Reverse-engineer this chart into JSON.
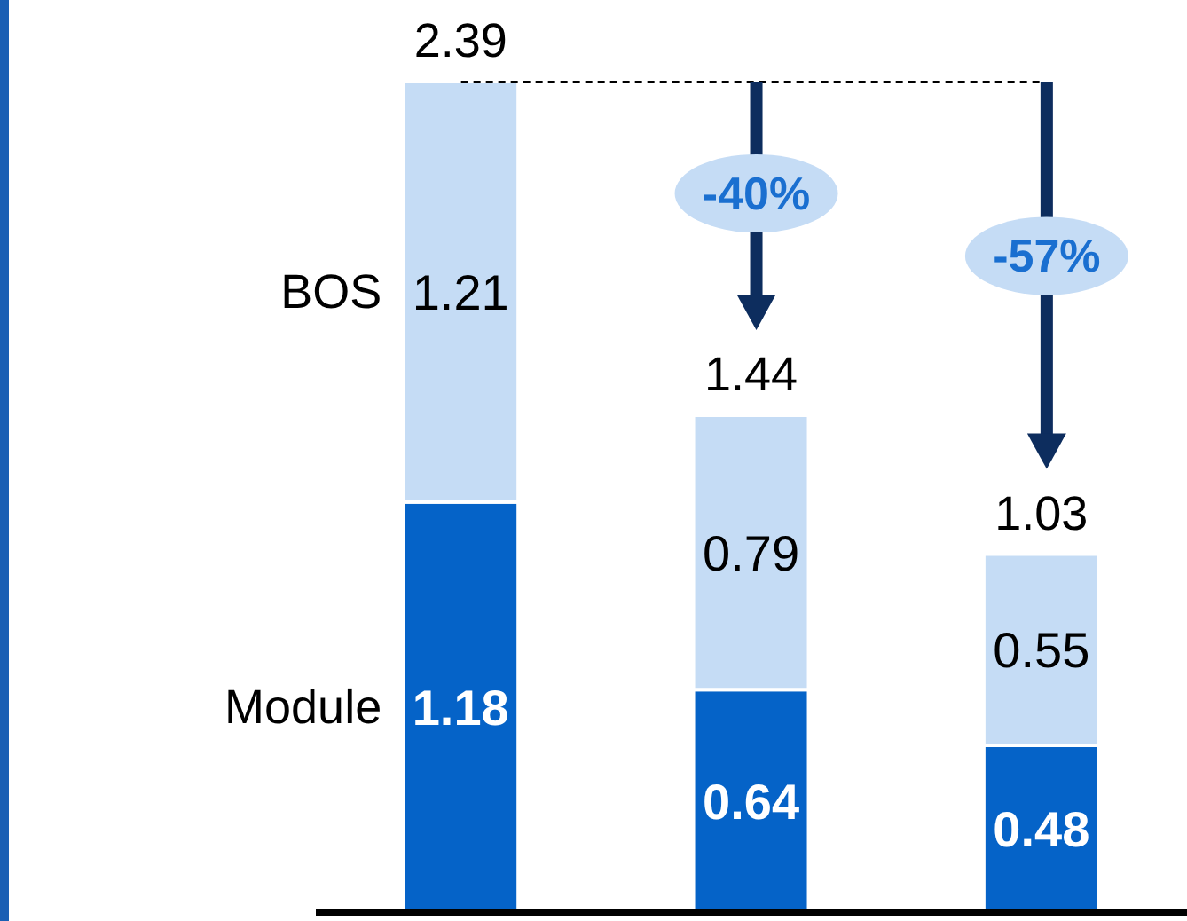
{
  "chart_data": {
    "type": "bar",
    "stacked": true,
    "categories": [
      null,
      null,
      null
    ],
    "series": [
      {
        "name": "Module",
        "color": "#0563c8",
        "values": [
          1.18,
          0.64,
          0.48
        ]
      },
      {
        "name": "BOS",
        "color": "#c5dcf5",
        "values": [
          1.21,
          0.79,
          0.55
        ]
      }
    ],
    "data_labels": true,
    "totals": [
      "2.39",
      "1.44",
      "1.03"
    ],
    "annotations": [
      "-40%",
      "-57%"
    ],
    "ref_lines": [
      {
        "axis": "y",
        "value": 2.39,
        "color": "#000000",
        "line_style": "dashed"
      }
    ]
  }
}
